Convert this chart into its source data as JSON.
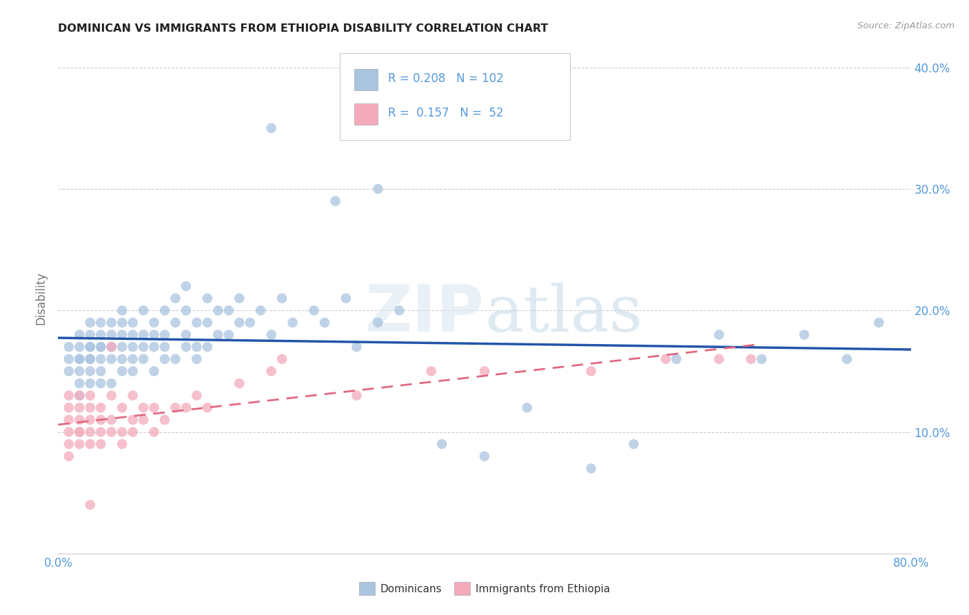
{
  "title": "DOMINICAN VS IMMIGRANTS FROM ETHIOPIA DISABILITY CORRELATION CHART",
  "source": "Source: ZipAtlas.com",
  "ylabel": "Disability",
  "xlim": [
    0.0,
    0.8
  ],
  "ylim": [
    0.0,
    0.42
  ],
  "xtick_positions": [
    0.0,
    0.2,
    0.4,
    0.6,
    0.8
  ],
  "xtick_labels": [
    "0.0%",
    "",
    "",
    "",
    "80.0%"
  ],
  "ytick_positions": [
    0.1,
    0.2,
    0.3,
    0.4
  ],
  "ytick_labels": [
    "10.0%",
    "20.0%",
    "30.0%",
    "40.0%"
  ],
  "grid_color": "#cccccc",
  "background_color": "#ffffff",
  "legend1_R": "0.208",
  "legend1_N": "102",
  "legend2_R": "0.157",
  "legend2_N": "52",
  "blue_color": "#aac4e0",
  "pink_color": "#f4aabb",
  "blue_line_color": "#2255aa",
  "pink_line_color": "#e06880",
  "label_color": "#5599dd",
  "dominicans_label": "Dominicans",
  "ethiopia_label": "Immigrants from Ethiopia",
  "blue_scatter_x": [
    0.01,
    0.01,
    0.01,
    0.02,
    0.02,
    0.02,
    0.02,
    0.02,
    0.02,
    0.02,
    0.03,
    0.03,
    0.03,
    0.03,
    0.03,
    0.03,
    0.03,
    0.03,
    0.04,
    0.04,
    0.04,
    0.04,
    0.04,
    0.04,
    0.04,
    0.05,
    0.05,
    0.05,
    0.05,
    0.05,
    0.06,
    0.06,
    0.06,
    0.06,
    0.06,
    0.06,
    0.07,
    0.07,
    0.07,
    0.07,
    0.07,
    0.08,
    0.08,
    0.08,
    0.08,
    0.09,
    0.09,
    0.09,
    0.09,
    0.1,
    0.1,
    0.1,
    0.1,
    0.11,
    0.11,
    0.11,
    0.12,
    0.12,
    0.12,
    0.12,
    0.13,
    0.13,
    0.13,
    0.14,
    0.14,
    0.14,
    0.15,
    0.15,
    0.16,
    0.16,
    0.17,
    0.17,
    0.18,
    0.19,
    0.2,
    0.21,
    0.22,
    0.24,
    0.25,
    0.27,
    0.28,
    0.3,
    0.32,
    0.2,
    0.26,
    0.3,
    0.36,
    0.4,
    0.44,
    0.5,
    0.54,
    0.58,
    0.62,
    0.66,
    0.7,
    0.74,
    0.77
  ],
  "blue_scatter_y": [
    0.15,
    0.17,
    0.16,
    0.14,
    0.16,
    0.18,
    0.15,
    0.17,
    0.13,
    0.16,
    0.14,
    0.16,
    0.17,
    0.19,
    0.15,
    0.17,
    0.16,
    0.18,
    0.15,
    0.17,
    0.19,
    0.14,
    0.17,
    0.16,
    0.18,
    0.16,
    0.18,
    0.14,
    0.17,
    0.19,
    0.15,
    0.17,
    0.19,
    0.2,
    0.16,
    0.18,
    0.15,
    0.18,
    0.16,
    0.19,
    0.17,
    0.16,
    0.18,
    0.2,
    0.17,
    0.17,
    0.19,
    0.15,
    0.18,
    0.16,
    0.18,
    0.2,
    0.17,
    0.16,
    0.19,
    0.21,
    0.17,
    0.2,
    0.18,
    0.22,
    0.17,
    0.19,
    0.16,
    0.17,
    0.19,
    0.21,
    0.18,
    0.2,
    0.18,
    0.2,
    0.19,
    0.21,
    0.19,
    0.2,
    0.18,
    0.21,
    0.19,
    0.2,
    0.19,
    0.21,
    0.17,
    0.19,
    0.2,
    0.35,
    0.29,
    0.3,
    0.09,
    0.08,
    0.12,
    0.07,
    0.09,
    0.16,
    0.18,
    0.16,
    0.18,
    0.16,
    0.19
  ],
  "pink_scatter_x": [
    0.01,
    0.01,
    0.01,
    0.01,
    0.01,
    0.01,
    0.02,
    0.02,
    0.02,
    0.02,
    0.02,
    0.02,
    0.03,
    0.03,
    0.03,
    0.03,
    0.03,
    0.04,
    0.04,
    0.04,
    0.04,
    0.05,
    0.05,
    0.05,
    0.06,
    0.06,
    0.06,
    0.07,
    0.07,
    0.07,
    0.08,
    0.08,
    0.09,
    0.09,
    0.1,
    0.11,
    0.12,
    0.13,
    0.14,
    0.17,
    0.2,
    0.21,
    0.28,
    0.35,
    0.4,
    0.5,
    0.57,
    0.62,
    0.65,
    0.03,
    0.05
  ],
  "pink_scatter_y": [
    0.12,
    0.1,
    0.11,
    0.13,
    0.09,
    0.08,
    0.1,
    0.12,
    0.11,
    0.09,
    0.13,
    0.1,
    0.11,
    0.09,
    0.12,
    0.1,
    0.13,
    0.1,
    0.12,
    0.11,
    0.09,
    0.11,
    0.13,
    0.1,
    0.1,
    0.12,
    0.09,
    0.11,
    0.13,
    0.1,
    0.11,
    0.12,
    0.12,
    0.1,
    0.11,
    0.12,
    0.12,
    0.13,
    0.12,
    0.14,
    0.15,
    0.16,
    0.13,
    0.15,
    0.15,
    0.15,
    0.16,
    0.16,
    0.16,
    0.04,
    0.17
  ]
}
